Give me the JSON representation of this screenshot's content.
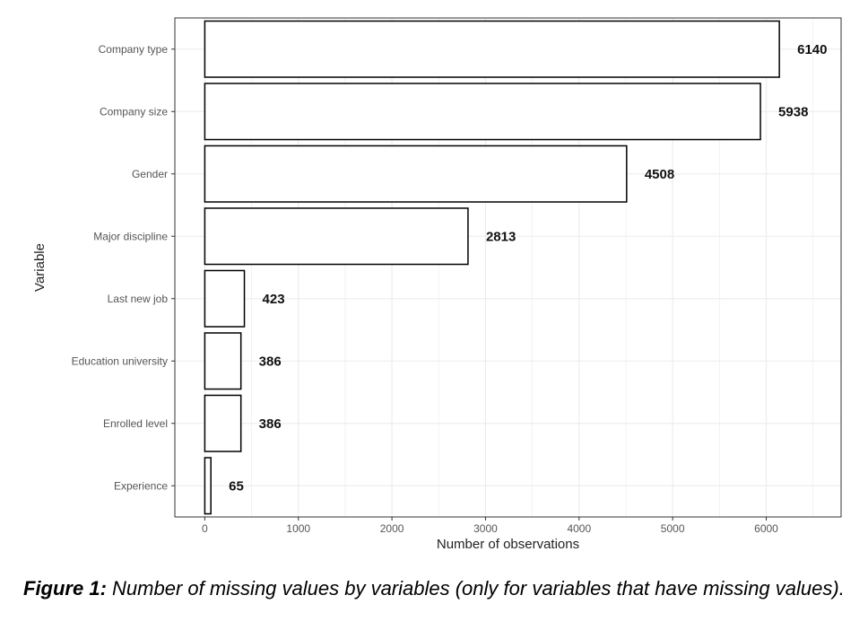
{
  "chart_data": {
    "type": "bar",
    "orientation": "horizontal",
    "categories": [
      "Company type",
      "Company size",
      "Gender",
      "Major discipline",
      "Last new job",
      "Education university",
      "Enrolled level",
      "Experience"
    ],
    "values": [
      6140,
      5938,
      4508,
      2813,
      423,
      386,
      386,
      65
    ],
    "data_labels": [
      "6140",
      "5938",
      "4508",
      "2813",
      "423",
      "386",
      "386",
      "65"
    ],
    "x_ticks": [
      "0",
      "1000",
      "2000",
      "3000",
      "4000",
      "5000",
      "6000"
    ],
    "xlabel": "Number of observations",
    "ylabel": "Variable",
    "xlim": [
      -320,
      6800
    ],
    "grid": true,
    "bar_fill": "#ffffff",
    "bar_stroke": "#000000"
  },
  "caption": {
    "figure_number": "Figure 1:",
    "text": " Number of missing values by variables (only for variables that have missing values)."
  }
}
